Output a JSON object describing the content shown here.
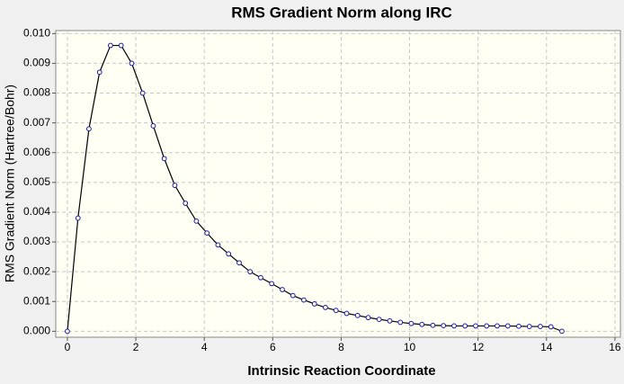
{
  "chart_data": {
    "type": "line",
    "title": "RMS Gradient Norm along IRC",
    "x_label": "Intrinsic Reaction Coordinate",
    "y_label": "RMS Gradient Norm (Hartree/Bohr)",
    "x": [
      0,
      0.31,
      0.63,
      0.94,
      1.26,
      1.57,
      1.88,
      2.2,
      2.51,
      2.83,
      3.14,
      3.45,
      3.77,
      4.08,
      4.4,
      4.71,
      5.02,
      5.34,
      5.65,
      5.97,
      6.28,
      6.59,
      6.91,
      7.22,
      7.54,
      7.85,
      8.16,
      8.48,
      8.79,
      9.11,
      9.42,
      9.73,
      10.05,
      10.36,
      10.68,
      10.99,
      11.3,
      11.62,
      11.93,
      12.25,
      12.56,
      12.87,
      13.19,
      13.5,
      13.82,
      14.13,
      14.45
    ],
    "series": [
      {
        "name": "RMS Gradient Norm",
        "color": "#000000",
        "marker_color": "#1a1aa0",
        "values": [
          0,
          0.0038,
          0.0068,
          0.0087,
          0.0096,
          0.0096,
          0.009,
          0.008,
          0.0069,
          0.0058,
          0.0049,
          0.0043,
          0.0037,
          0.0033,
          0.0029,
          0.0026,
          0.0023,
          0.002,
          0.0018,
          0.0016,
          0.0014,
          0.0012,
          0.00105,
          0.00092,
          0.0008,
          0.0007,
          0.0006,
          0.00053,
          0.00046,
          0.0004,
          0.00035,
          0.0003,
          0.00026,
          0.00023,
          0.0002,
          0.00019,
          0.00018,
          0.00018,
          0.00018,
          0.00018,
          0.00018,
          0.00018,
          0.00017,
          0.00016,
          0.00016,
          0.00015,
          0
        ]
      }
    ],
    "xlim": [
      -0.34,
      16.16
    ],
    "ylim": [
      -0.0002,
      0.0101
    ],
    "xticks": [
      0,
      2,
      4,
      6,
      8,
      10,
      12,
      14,
      16
    ],
    "yticks": [
      {
        "value": 0,
        "label": "0.000"
      },
      {
        "value": 0.001,
        "label": "0.001"
      },
      {
        "value": 0.002,
        "label": "0.002"
      },
      {
        "value": 0.003,
        "label": "0.003"
      },
      {
        "value": 0.004,
        "label": "0.004"
      },
      {
        "value": 0.005,
        "label": "0.005"
      },
      {
        "value": 0.006,
        "label": "0.006"
      },
      {
        "value": 0.007,
        "label": "0.007"
      },
      {
        "value": 0.008,
        "label": "0.008"
      },
      {
        "value": 0.009,
        "label": "0.009"
      },
      {
        "value": 0.01,
        "label": "0.010"
      }
    ],
    "grid": true
  }
}
